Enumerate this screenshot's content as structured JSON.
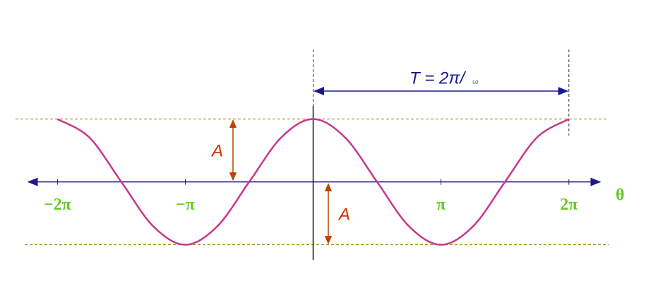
{
  "chart_data": {
    "type": "line",
    "x": [
      -6.2832,
      -5.4978,
      -4.7124,
      -3.927,
      -3.1416,
      -2.3562,
      -1.5708,
      -0.7854,
      0,
      0.7854,
      1.5708,
      2.3562,
      3.1416,
      3.927,
      4.7124,
      5.4978,
      6.2832
    ],
    "series": [
      {
        "color": "#c4388c",
        "values": [
          1,
          0.7071,
          0,
          -0.7071,
          -1,
          -0.7071,
          0,
          0.7071,
          1,
          0.7071,
          0,
          -0.7071,
          -1,
          -0.7071,
          0,
          0.7071,
          1
        ]
      }
    ],
    "xlim": [
      -7.0,
      7.05
    ],
    "ylim": [
      -1.24,
      1.21
    ],
    "xticks": [
      {
        "value": -6.2832,
        "label": "−2π"
      },
      {
        "value": -3.1416,
        "label": "−π"
      },
      {
        "value": 3.1416,
        "label": "π"
      },
      {
        "value": 6.2832,
        "label": "2π"
      }
    ],
    "x_axis_label": "θ",
    "annotations": {
      "period": "T = 2π/",
      "omega": "ω",
      "amplitude_upper": "A",
      "amplitude_lower": "A"
    }
  }
}
